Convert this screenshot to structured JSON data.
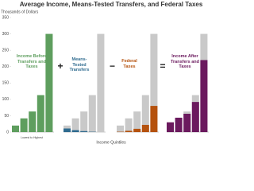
{
  "chart_data": {
    "type": "bar",
    "title": "Average Income, Means-Tested Transfers, and Federal Taxes",
    "y_label": "Thousands of Dollars",
    "x_label": "Income Quintiles",
    "x_note": "Lowest to Highest",
    "ylim": [
      0,
      350
    ],
    "yticks": [
      0,
      50,
      100,
      150,
      200,
      250,
      300,
      350
    ],
    "categories": [
      null,
      null,
      null,
      null,
      null
    ],
    "ghost_color": "#c9c9c9",
    "series": [
      {
        "name": "Income Before Transfers and Taxes",
        "color": "#5e9e5e",
        "values": [
          20,
          42,
          63,
          113,
          300
        ]
      },
      {
        "name": "Means-Tested Transfers",
        "color": "#2f6b8f",
        "operator": "+",
        "values": [
          11,
          6,
          3,
          1,
          0
        ]
      },
      {
        "name": "Federal Taxes",
        "color": "#b5520e",
        "operator": "−",
        "values": [
          1,
          4,
          10,
          22,
          80
        ]
      },
      {
        "name": "Income After Transfers and Taxes",
        "color": "#6b1a5e",
        "operator": "=",
        "values": [
          30,
          44,
          56,
          92,
          220
        ]
      }
    ]
  }
}
